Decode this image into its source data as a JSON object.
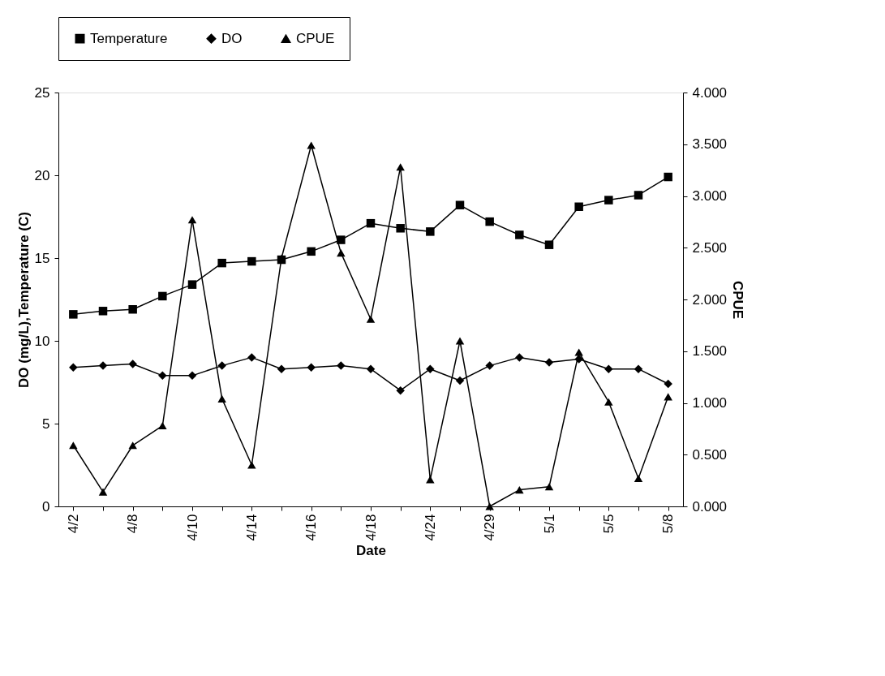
{
  "chart_data": {
    "type": "line",
    "xlabel": "Date",
    "ylabel": "DO (mg/L),Temperature (C)",
    "y2label": "CPUE",
    "categories": [
      "4/2",
      null,
      "4/8",
      null,
      "4/10",
      null,
      "4/14",
      null,
      "4/16",
      null,
      "4/18",
      null,
      "4/24",
      null,
      "4/29",
      null,
      "5/1",
      null,
      "5/5",
      null,
      "5/8"
    ],
    "series": [
      {
        "name": "Temperature",
        "color": "#000000",
        "marker": "square",
        "values": [
          11.6,
          11.8,
          11.9,
          12.7,
          13.4,
          14.7,
          14.8,
          14.9,
          15.4,
          16.1,
          17.1,
          16.8,
          16.6,
          18.2,
          17.2,
          16.4,
          15.8,
          18.1,
          18.5,
          18.8,
          19.9
        ]
      },
      {
        "name": "DO",
        "color": "#000000",
        "marker": "diamond",
        "values": [
          8.4,
          8.5,
          8.6,
          7.9,
          7.9,
          8.5,
          9.0,
          8.3,
          8.4,
          8.5,
          8.3,
          7.0,
          8.3,
          7.6,
          8.5,
          9.0,
          8.7,
          8.9,
          8.3,
          8.3,
          7.4
        ]
      },
      {
        "name": "CPUE",
        "color": "#000000",
        "marker": "triangle",
        "axis": "y2",
        "values": [
          0.59,
          0.14,
          0.59,
          0.78,
          2.77,
          1.04,
          0.4,
          2.4,
          3.49,
          2.45,
          1.81,
          3.28,
          0.26,
          1.6,
          0.0,
          0.16,
          0.19,
          1.49,
          1.01,
          0.27,
          1.06
        ]
      }
    ],
    "ylim": [
      0,
      25
    ],
    "yticks": [
      0,
      5,
      10,
      15,
      20,
      25
    ],
    "y2lim": [
      0,
      4
    ],
    "y2ticks": [
      {
        "value": 0,
        "label": "0.000"
      },
      {
        "value": 0.5,
        "label": "0.500"
      },
      {
        "value": 1,
        "label": "1.000"
      },
      {
        "value": 1.5,
        "label": "1.500"
      },
      {
        "value": 2,
        "label": "2.000"
      },
      {
        "value": 2.5,
        "label": "2.500"
      },
      {
        "value": 3,
        "label": "3.000"
      },
      {
        "value": 3.5,
        "label": "3.500"
      },
      {
        "value": 4,
        "label": "4.000"
      }
    ],
    "grid": false,
    "legend": "top",
    "line_style": "solid"
  }
}
